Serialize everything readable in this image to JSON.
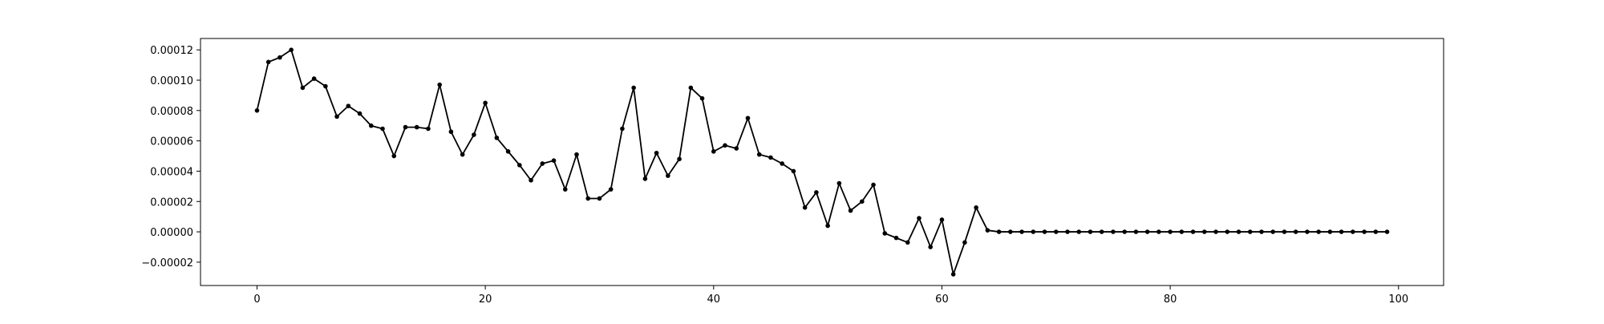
{
  "chart_data": {
    "type": "line",
    "title": "",
    "xlabel": "",
    "ylabel": "",
    "xlim": [
      -4.95,
      103.95
    ],
    "ylim": [
      -3.54e-05,
      0.0001275
    ],
    "xticks": [
      0,
      20,
      40,
      60,
      80,
      100
    ],
    "xtick_labels": [
      "0",
      "20",
      "40",
      "60",
      "80",
      "100"
    ],
    "yticks": [
      -2e-05,
      0.0,
      2e-05,
      4e-05,
      6e-05,
      8e-05,
      0.0001,
      0.00012
    ],
    "ytick_labels": [
      "−0.00002",
      "0.00000",
      "0.00002",
      "0.00004",
      "0.00006",
      "0.00008",
      "0.00010",
      "0.00012"
    ],
    "grid": false,
    "legend": false,
    "series": [
      {
        "color": "#000000",
        "marker": "dot",
        "x": [
          0,
          1,
          2,
          3,
          4,
          5,
          6,
          7,
          8,
          9,
          10,
          11,
          12,
          13,
          14,
          15,
          16,
          17,
          18,
          19,
          20,
          21,
          22,
          23,
          24,
          25,
          26,
          27,
          28,
          29,
          30,
          31,
          32,
          33,
          34,
          35,
          36,
          37,
          38,
          39,
          40,
          41,
          42,
          43,
          44,
          45,
          46,
          47,
          48,
          49,
          50,
          51,
          52,
          53,
          54,
          55,
          56,
          57,
          58,
          59,
          60,
          61,
          62,
          63,
          64,
          65,
          66,
          67,
          68,
          69,
          70,
          71,
          72,
          73,
          74,
          75,
          76,
          77,
          78,
          79,
          80,
          81,
          82,
          83,
          84,
          85,
          86,
          87,
          88,
          89,
          90,
          91,
          92,
          93,
          94,
          95,
          96,
          97,
          98,
          99
        ],
        "y": [
          8e-05,
          0.000112,
          0.000115,
          0.00012,
          9.5e-05,
          0.000101,
          9.6e-05,
          7.6e-05,
          8.3e-05,
          7.8e-05,
          7e-05,
          6.8e-05,
          5e-05,
          6.9e-05,
          6.9e-05,
          6.8e-05,
          9.7e-05,
          6.6e-05,
          5.1e-05,
          6.4e-05,
          8.5e-05,
          6.2e-05,
          5.3e-05,
          4.4e-05,
          3.4e-05,
          4.5e-05,
          4.7e-05,
          2.8e-05,
          5.1e-05,
          2.2e-05,
          2.2e-05,
          2.8e-05,
          6.8e-05,
          9.5e-05,
          3.5e-05,
          5.2e-05,
          3.7e-05,
          4.8e-05,
          9.5e-05,
          8.8e-05,
          5.3e-05,
          5.7e-05,
          5.5e-05,
          7.5e-05,
          5.1e-05,
          4.9e-05,
          4.5e-05,
          4e-05,
          1.6e-05,
          2.6e-05,
          4e-06,
          3.2e-05,
          1.4e-05,
          2e-05,
          3.1e-05,
          -1e-06,
          -4e-06,
          -7e-06,
          9e-06,
          -1e-05,
          8e-06,
          -2.8e-05,
          -7e-06,
          1.6e-05,
          1e-06,
          0,
          0,
          0,
          0,
          0,
          0,
          0,
          0,
          0,
          0,
          0,
          0,
          0,
          0,
          0,
          0,
          0,
          0,
          0,
          0,
          0,
          0,
          0,
          0,
          0,
          0,
          0,
          0,
          0,
          0,
          0,
          0,
          0,
          0,
          0
        ]
      }
    ]
  }
}
